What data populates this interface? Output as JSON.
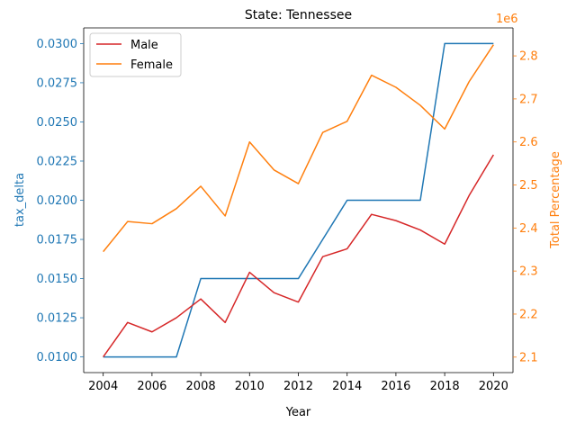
{
  "chart_data": {
    "type": "line",
    "title": "State: Tennessee",
    "xlabel": "Year",
    "ylabel_left": "tax_delta",
    "ylabel_right": "Total Percentage",
    "right_axis_offset_text": "1e6",
    "x": [
      2004,
      2005,
      2006,
      2007,
      2008,
      2009,
      2010,
      2011,
      2012,
      2013,
      2014,
      2015,
      2016,
      2017,
      2018,
      2019,
      2020
    ],
    "x_ticks": [
      2004,
      2006,
      2008,
      2010,
      2012,
      2014,
      2016,
      2018,
      2020
    ],
    "x_tick_labels": [
      "2004",
      "2006",
      "2008",
      "2010",
      "2012",
      "2014",
      "2016",
      "2018",
      "2020"
    ],
    "xlim": [
      2003.2,
      2020.8
    ],
    "left_axis": {
      "ylim": [
        0.009,
        0.031
      ],
      "ticks": [
        0.01,
        0.0125,
        0.015,
        0.0175,
        0.02,
        0.0225,
        0.025,
        0.0275,
        0.03
      ],
      "tick_labels": [
        "0.0100",
        "0.0125",
        "0.0150",
        "0.0175",
        "0.0200",
        "0.0225",
        "0.0250",
        "0.0275",
        "0.0300"
      ],
      "color": "#1f77b4"
    },
    "right_axis": {
      "ylim": [
        2.064,
        2.865
      ],
      "ticks": [
        2.1,
        2.2,
        2.3,
        2.4,
        2.5,
        2.6,
        2.7,
        2.8
      ],
      "tick_labels": [
        "2.1",
        "2.2",
        "2.3",
        "2.4",
        "2.5",
        "2.6",
        "2.7",
        "2.8"
      ],
      "color": "#ff7f0e"
    },
    "series": [
      {
        "axis": "left",
        "color": "#1f77b4",
        "values": [
          0.01,
          0.01,
          0.01,
          0.01,
          0.015,
          0.015,
          0.015,
          0.015,
          0.015,
          0.0175,
          0.02,
          0.02,
          0.02,
          0.02,
          0.03,
          0.03,
          0.03
        ]
      },
      {
        "name": "Male",
        "axis": "left",
        "color": "#d62728",
        "values": [
          0.01,
          0.0122,
          0.0116,
          0.0125,
          0.0137,
          0.0122,
          0.0154,
          0.0141,
          0.0135,
          0.0164,
          0.0169,
          0.0191,
          0.0187,
          0.0181,
          0.0172,
          0.0203,
          0.0229
        ]
      },
      {
        "name": "Female",
        "axis": "right",
        "color": "#ff7f0e",
        "values": [
          2.345,
          2.415,
          2.41,
          2.445,
          2.497,
          2.428,
          2.6,
          2.535,
          2.503,
          2.622,
          2.648,
          2.755,
          2.727,
          2.685,
          2.63,
          2.74,
          2.826
        ]
      }
    ],
    "legend": {
      "placement": "top-left",
      "entries": [
        "Male",
        "Female"
      ]
    },
    "grid": false
  }
}
